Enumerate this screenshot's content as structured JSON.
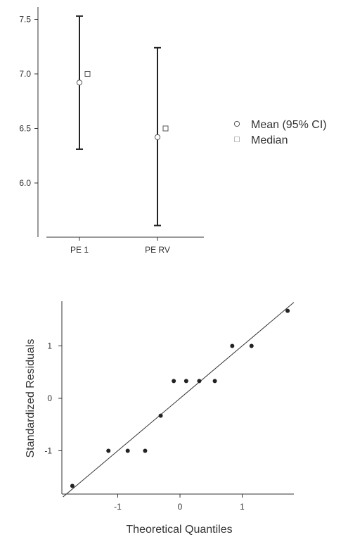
{
  "chart_data": [
    {
      "type": "errorbar",
      "categories": [
        "PE 1",
        "PE RV"
      ],
      "series": [
        {
          "name": "Mean (95% CI)",
          "values": [
            6.92,
            6.42
          ],
          "ci_low": [
            6.31,
            5.61
          ],
          "ci_high": [
            7.53,
            7.24
          ]
        },
        {
          "name": "Median",
          "values": [
            7.0,
            6.5
          ]
        }
      ],
      "yticks": [
        "6.0",
        "6.5",
        "7.0",
        "7.5"
      ],
      "ylim": [
        5.55,
        7.6
      ],
      "legend_position": "right"
    },
    {
      "type": "scatter",
      "xlabel": "Theoretical Quantiles",
      "ylabel": "Standardized Residuals",
      "xticks": [
        "-1",
        "0",
        "1"
      ],
      "yticks": [
        "-1",
        "0",
        "1"
      ],
      "xlim": [
        -1.88,
        1.88
      ],
      "ylim": [
        -1.85,
        1.85
      ],
      "points": [
        {
          "x": -1.73,
          "y": -1.67
        },
        {
          "x": -1.15,
          "y": -1.0
        },
        {
          "x": -0.84,
          "y": -1.0
        },
        {
          "x": -0.56,
          "y": -1.0
        },
        {
          "x": -0.31,
          "y": -0.33
        },
        {
          "x": -0.1,
          "y": 0.33
        },
        {
          "x": 0.1,
          "y": 0.33
        },
        {
          "x": 0.31,
          "y": 0.33
        },
        {
          "x": 0.56,
          "y": 0.33
        },
        {
          "x": 0.84,
          "y": 1.0
        },
        {
          "x": 1.15,
          "y": 1.0
        },
        {
          "x": 1.73,
          "y": 1.67
        }
      ],
      "reference_line": {
        "slope": 1,
        "intercept": 0
      }
    }
  ]
}
